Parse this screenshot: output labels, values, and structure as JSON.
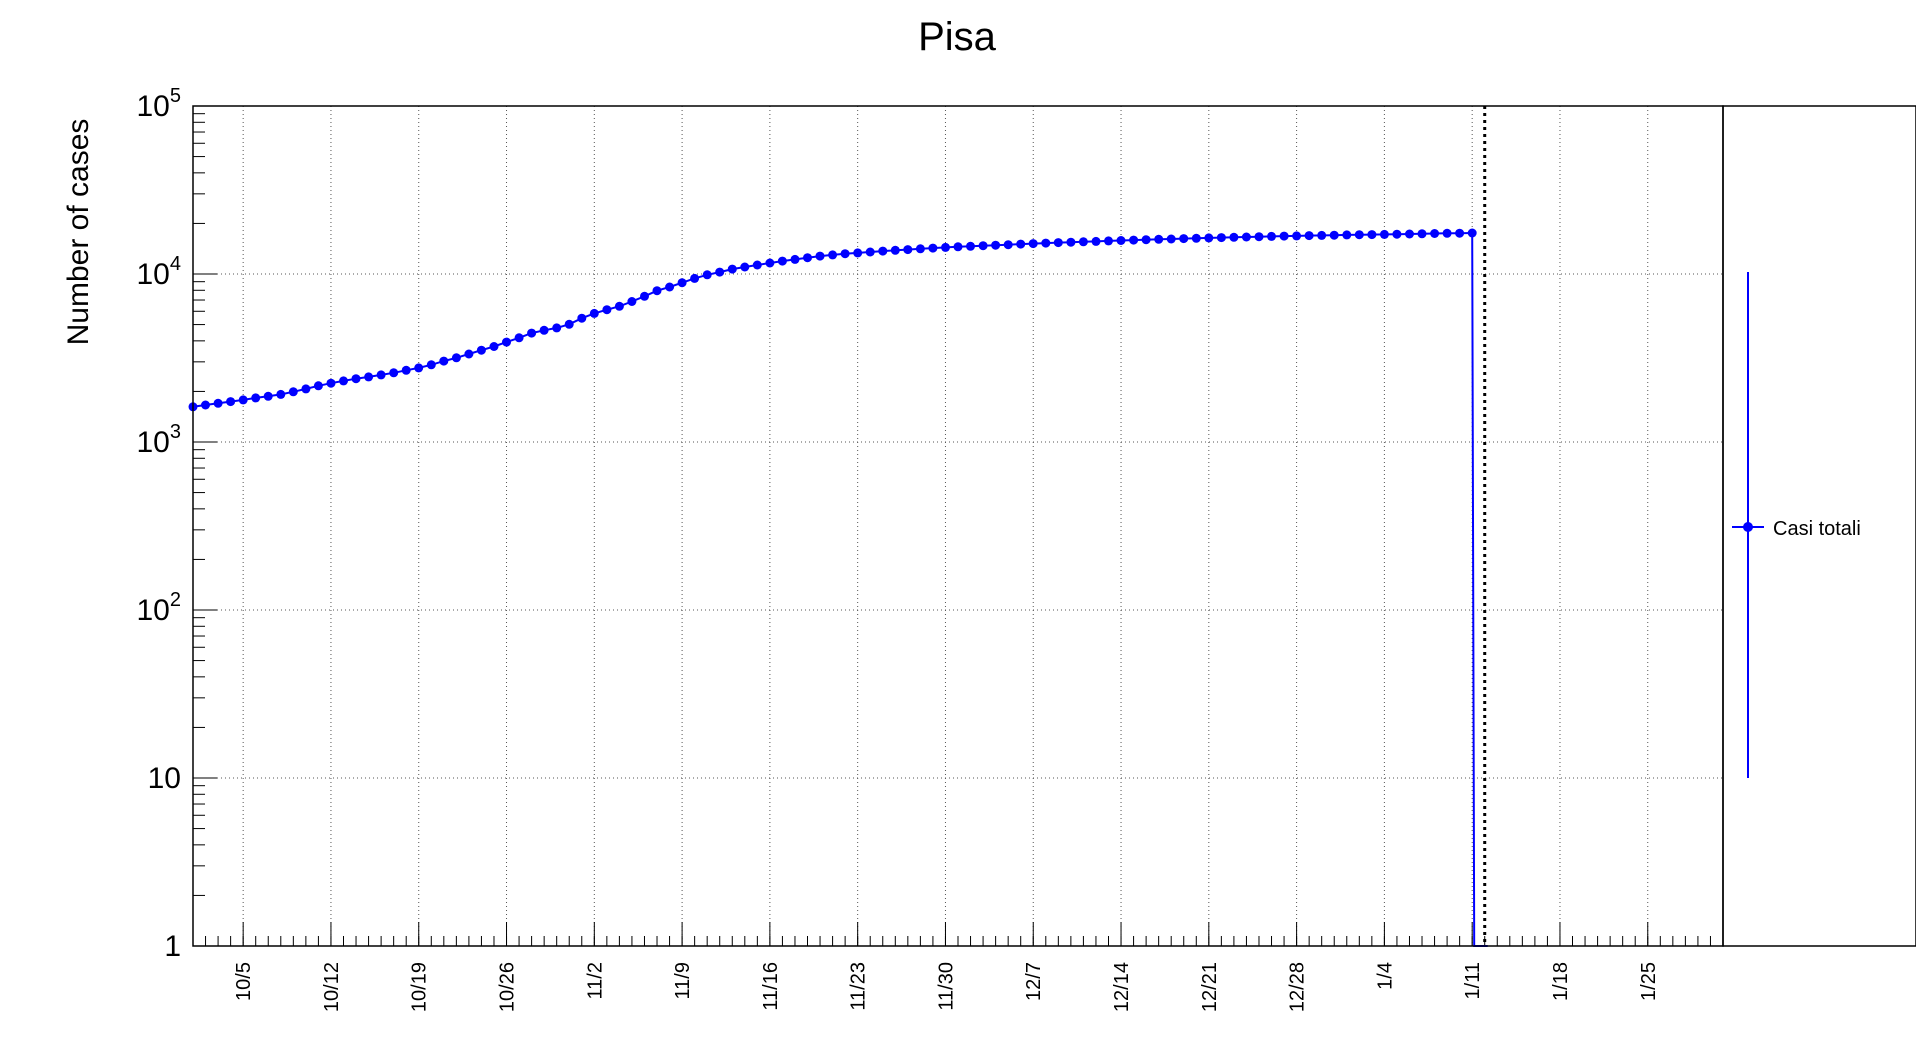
{
  "chart_data": {
    "type": "line",
    "title": "Pisa",
    "ylabel": "Number of cases",
    "xlabel": "",
    "y_scale": "log",
    "ylim": [
      1,
      100000
    ],
    "xlim": [
      "2020-10-01",
      "2021-01-31"
    ],
    "grid": true,
    "legend_position": "right",
    "x_tick_labels": [
      "10/5",
      "10/12",
      "10/19",
      "10/26",
      "11/2",
      "11/9",
      "11/16",
      "11/23",
      "11/30",
      "12/7",
      "12/14",
      "12/21",
      "12/28",
      "1/4",
      "1/11",
      "1/18",
      "1/25"
    ],
    "x_ticks": [
      "2020-10-05",
      "2020-10-12",
      "2020-10-19",
      "2020-10-26",
      "2020-11-02",
      "2020-11-09",
      "2020-11-16",
      "2020-11-23",
      "2020-11-30",
      "2020-12-07",
      "2020-12-14",
      "2020-12-21",
      "2020-12-28",
      "2021-01-04",
      "2021-01-11",
      "2021-01-18",
      "2021-01-25"
    ],
    "y_tick_labels": [
      {
        "value": 1,
        "base": "1",
        "exp": ""
      },
      {
        "value": 10,
        "base": "10",
        "exp": ""
      },
      {
        "value": 100,
        "base": "10",
        "exp": "2"
      },
      {
        "value": 1000,
        "base": "10",
        "exp": "3"
      },
      {
        "value": 10000,
        "base": "10",
        "exp": "4"
      },
      {
        "value": 100000,
        "base": "10",
        "exp": "5"
      }
    ],
    "marker_line_date": "2021-01-12",
    "series": [
      {
        "name": "Casi totali",
        "color": "#0000ff",
        "x": [
          "2020-10-01",
          "2020-10-02",
          "2020-10-03",
          "2020-10-04",
          "2020-10-05",
          "2020-10-06",
          "2020-10-07",
          "2020-10-08",
          "2020-10-09",
          "2020-10-10",
          "2020-10-11",
          "2020-10-12",
          "2020-10-13",
          "2020-10-14",
          "2020-10-15",
          "2020-10-16",
          "2020-10-17",
          "2020-10-18",
          "2020-10-19",
          "2020-10-20",
          "2020-10-21",
          "2020-10-22",
          "2020-10-23",
          "2020-10-24",
          "2020-10-25",
          "2020-10-26",
          "2020-10-27",
          "2020-10-28",
          "2020-10-29",
          "2020-10-30",
          "2020-10-31",
          "2020-11-01",
          "2020-11-02",
          "2020-11-03",
          "2020-11-04",
          "2020-11-05",
          "2020-11-06",
          "2020-11-07",
          "2020-11-08",
          "2020-11-09",
          "2020-11-10",
          "2020-11-11",
          "2020-11-12",
          "2020-11-13",
          "2020-11-14",
          "2020-11-15",
          "2020-11-16",
          "2020-11-17",
          "2020-11-18",
          "2020-11-19",
          "2020-11-20",
          "2020-11-21",
          "2020-11-22",
          "2020-11-23",
          "2020-11-24",
          "2020-11-25",
          "2020-11-26",
          "2020-11-27",
          "2020-11-28",
          "2020-11-29",
          "2020-11-30",
          "2020-12-01",
          "2020-12-02",
          "2020-12-03",
          "2020-12-04",
          "2020-12-05",
          "2020-12-06",
          "2020-12-07",
          "2020-12-08",
          "2020-12-09",
          "2020-12-10",
          "2020-12-11",
          "2020-12-12",
          "2020-12-13",
          "2020-12-14",
          "2020-12-15",
          "2020-12-16",
          "2020-12-17",
          "2020-12-18",
          "2020-12-19",
          "2020-12-20",
          "2020-12-21",
          "2020-12-22",
          "2020-12-23",
          "2020-12-24",
          "2020-12-25",
          "2020-12-26",
          "2020-12-27",
          "2020-12-28",
          "2020-12-29",
          "2020-12-30",
          "2020-12-31",
          "2021-01-01",
          "2021-01-02",
          "2021-01-03",
          "2021-01-04",
          "2021-01-05",
          "2021-01-06",
          "2021-01-07",
          "2021-01-08",
          "2021-01-09",
          "2021-01-10",
          "2021-01-11"
        ],
        "values": [
          1620,
          1660,
          1700,
          1740,
          1780,
          1830,
          1870,
          1920,
          1990,
          2070,
          2160,
          2240,
          2310,
          2380,
          2440,
          2510,
          2580,
          2670,
          2760,
          2880,
          3030,
          3170,
          3340,
          3520,
          3700,
          3930,
          4170,
          4450,
          4620,
          4780,
          5020,
          5460,
          5830,
          6130,
          6420,
          6860,
          7370,
          7950,
          8370,
          8880,
          9410,
          9890,
          10270,
          10690,
          11010,
          11320,
          11630,
          11930,
          12220,
          12500,
          12780,
          13000,
          13200,
          13360,
          13520,
          13680,
          13830,
          13980,
          14120,
          14260,
          14400,
          14510,
          14620,
          14730,
          14840,
          14950,
          15060,
          15170,
          15270,
          15370,
          15460,
          15550,
          15640,
          15730,
          15820,
          15910,
          16000,
          16080,
          16160,
          16240,
          16320,
          16400,
          16470,
          16540,
          16610,
          16680,
          16740,
          16800,
          16860,
          16920,
          16980,
          17030,
          17080,
          17130,
          17170,
          17210,
          17260,
          17310,
          17360,
          17410,
          17460,
          17500,
          17540
        ]
      }
    ]
  }
}
